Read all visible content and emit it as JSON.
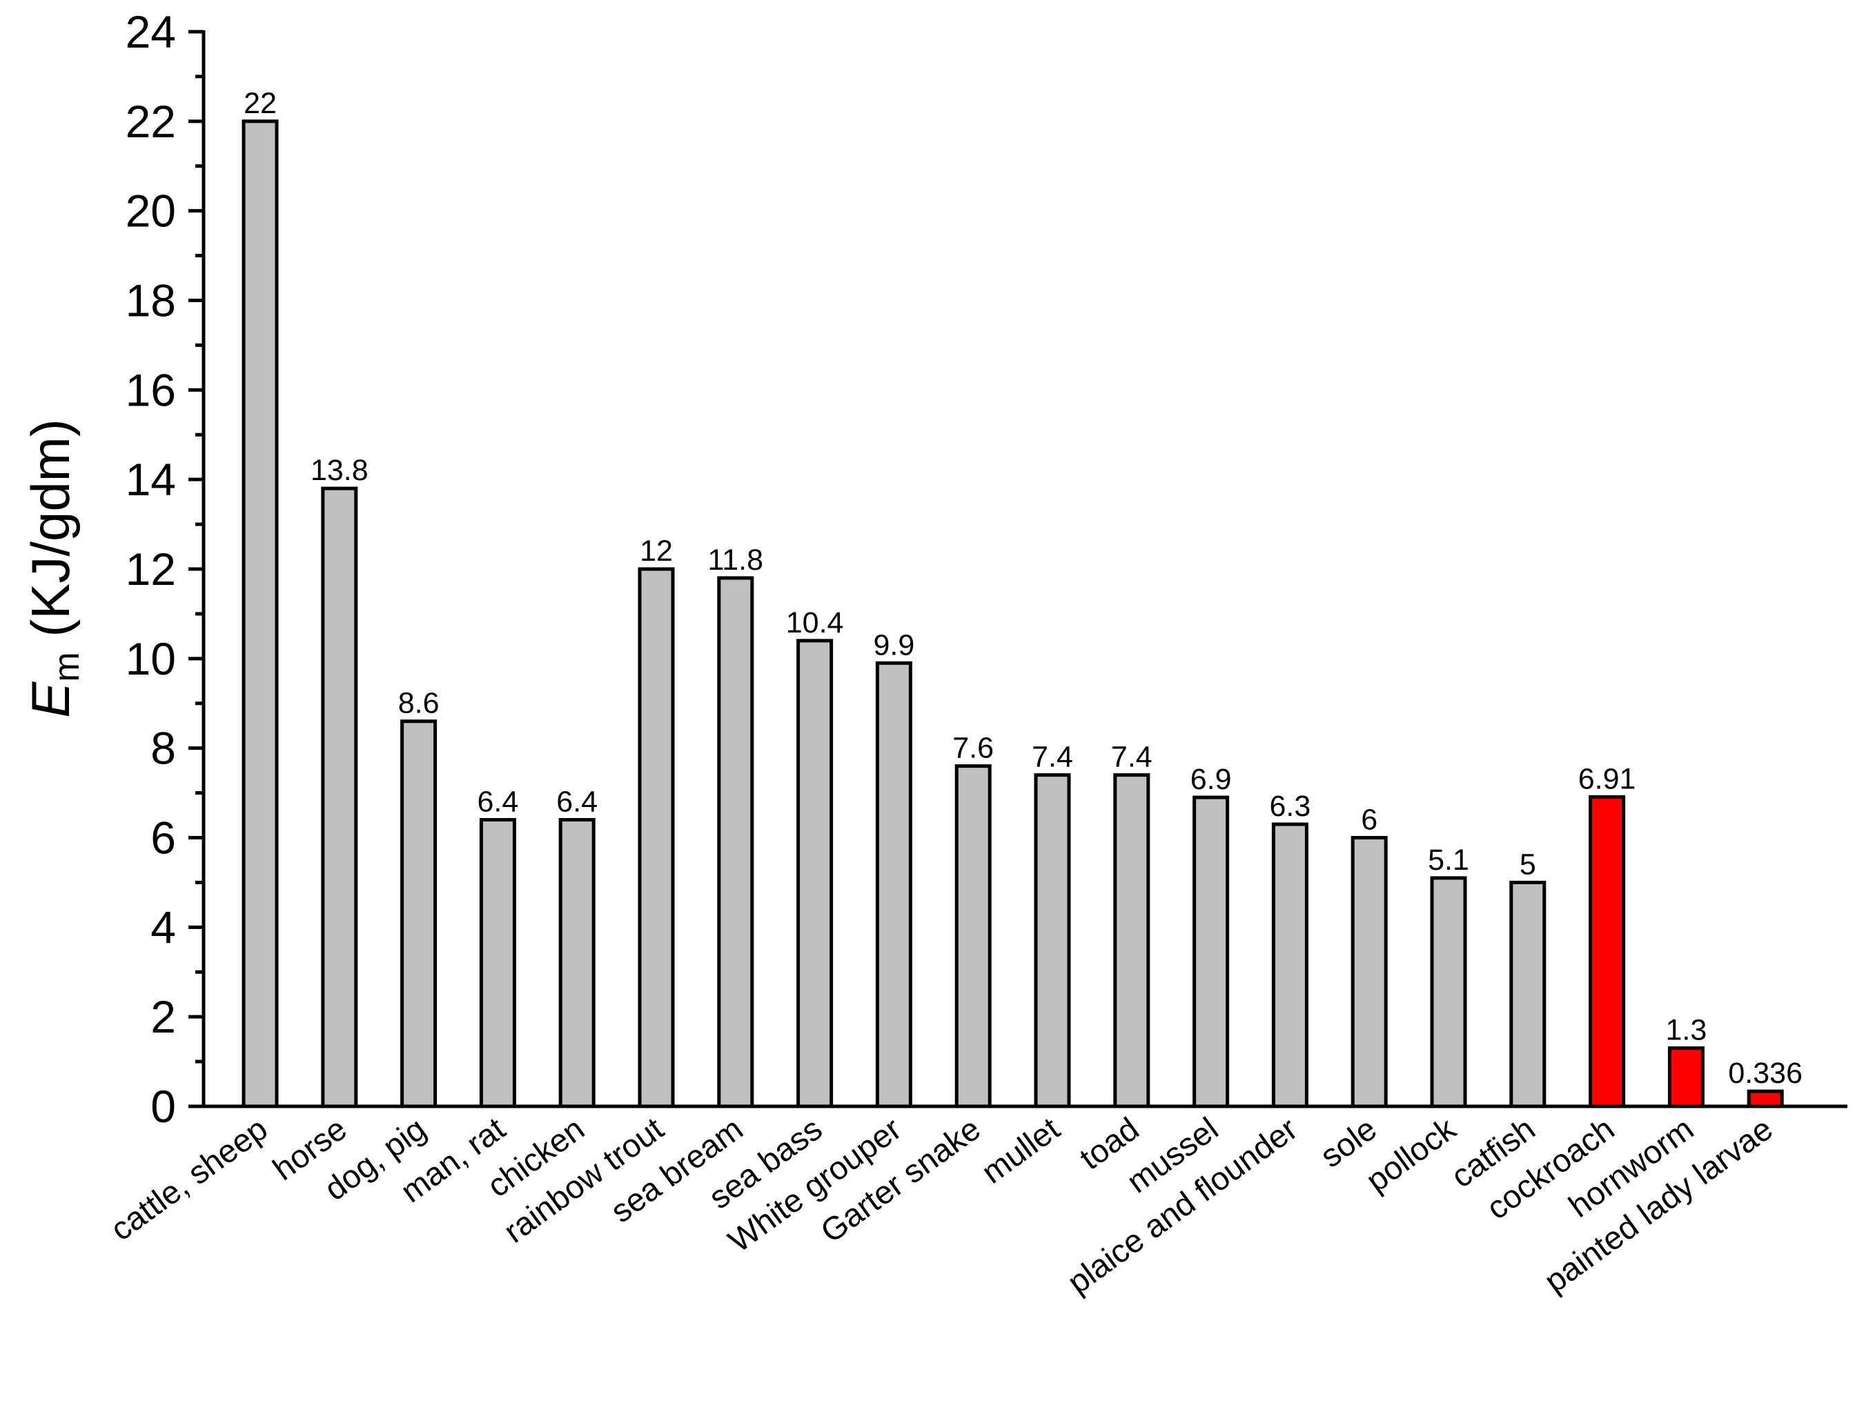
{
  "chart_data": {
    "type": "bar",
    "title": "",
    "xlabel": "",
    "ylabel": {
      "symbol": "E",
      "subscript": "m",
      "unit": " (KJ/gdm)"
    },
    "ylim": [
      0,
      24
    ],
    "yticks": [
      0,
      2,
      4,
      6,
      8,
      10,
      12,
      14,
      16,
      18,
      20,
      22,
      24
    ],
    "grid": false,
    "categories": [
      "cattle, sheep",
      "horse",
      "dog, pig",
      "man, rat",
      "chicken",
      "rainbow trout",
      "sea bream",
      "sea bass",
      "White grouper",
      "Garter snake",
      "mullet",
      "toad",
      "mussel",
      "plaice and flounder",
      "sole",
      "pollock",
      "catfish",
      "cockroach",
      "hornworm",
      "painted lady larvae"
    ],
    "values": [
      22,
      13.8,
      8.6,
      6.4,
      6.4,
      12,
      11.8,
      10.4,
      9.9,
      7.6,
      7.4,
      7.4,
      6.9,
      6.3,
      6,
      5.1,
      5,
      6.91,
      1.3,
      0.336
    ],
    "value_labels": [
      "22",
      "13.8",
      "8.6",
      "6.4",
      "6.4",
      "12",
      "11.8",
      "10.4",
      "9.9",
      "7.6",
      "7.4",
      "7.4",
      "6.9",
      "6.3",
      "6",
      "5.1",
      "5",
      "6.91",
      "1.3",
      "0.336"
    ],
    "highlighted": [
      false,
      false,
      false,
      false,
      false,
      false,
      false,
      false,
      false,
      false,
      false,
      false,
      false,
      false,
      false,
      false,
      false,
      true,
      true,
      true
    ],
    "colors": {
      "default": "#c0c0c0",
      "highlight": "#ff0000",
      "outline": "#000000"
    }
  }
}
